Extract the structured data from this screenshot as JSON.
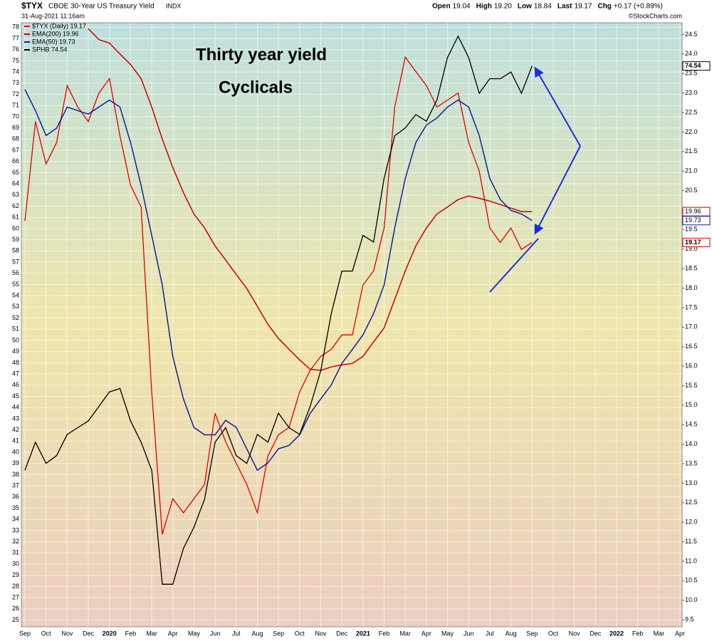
{
  "header": {
    "symbol": "$TYX",
    "name": "CBOE 30-Year US Treasury Yield",
    "exchange": "INDX",
    "datetime": "31-Aug-2021 11:16am",
    "copyright": "©StockCharts.com",
    "stats": [
      {
        "label": "Open",
        "value": "19.04"
      },
      {
        "label": "High",
        "value": "19.20"
      },
      {
        "label": "Low",
        "value": "18.84"
      },
      {
        "label": "Last",
        "value": "19.17"
      },
      {
        "label": "Chg",
        "value": "+0.17 (+0.89%)"
      }
    ]
  },
  "chart_data": {
    "type": "line",
    "annotations": [
      {
        "text": "Thirty year yield",
        "color": "#e00000"
      },
      {
        "text": "Cyclicals",
        "color": "#000000"
      }
    ],
    "categories": [
      "Sep",
      null,
      "Oct",
      null,
      "Nov",
      null,
      "Dec",
      null,
      "2020",
      null,
      "Feb",
      null,
      "Mar",
      null,
      "Apr",
      null,
      "May",
      null,
      "Jun",
      null,
      "Jul",
      null,
      "Aug",
      null,
      "Sep",
      null,
      "Oct",
      null,
      "Nov",
      null,
      "Dec",
      null,
      "2021",
      null,
      "Feb",
      null,
      "Mar",
      null,
      "Apr",
      null,
      "May",
      null,
      "Jun",
      null,
      "Jul",
      null,
      "Aug",
      null,
      "Sep",
      null,
      "Oct",
      null,
      "Nov",
      null,
      "Dec",
      null,
      "2022",
      null,
      "Feb",
      null,
      "Mar",
      null,
      "Apr"
    ],
    "series": [
      {
        "name": "$TYX (Daily) 19.17",
        "color": "#e00000",
        "axis": "y2",
        "width": 1.3,
        "values": [
          19.72,
          22.27,
          21.18,
          21.73,
          23.19,
          22.64,
          22.27,
          23.0,
          23.37,
          21.9,
          20.63,
          20.08,
          15.34,
          11.69,
          12.6,
          12.24,
          12.6,
          12.97,
          14.79,
          14.06,
          13.51,
          12.97,
          12.24,
          13.7,
          14.24,
          14.43,
          15.34,
          15.89,
          16.25,
          16.43,
          16.8,
          16.8,
          18.08,
          18.44,
          19.54,
          22.64,
          23.92,
          23.55,
          23.19,
          22.64,
          22.82,
          23.0,
          21.73,
          21.0,
          19.54,
          19.17,
          19.54,
          18.99,
          19.17,
          null,
          null,
          null,
          null,
          null,
          null,
          null,
          null,
          null,
          null,
          null,
          null,
          null,
          null
        ]
      },
      {
        "name": "EMA(200) 19.96",
        "color": "#cc0000",
        "axis": "y2",
        "width": 1.5,
        "values": [
          null,
          null,
          null,
          null,
          null,
          null,
          24.65,
          24.37,
          24.28,
          24.0,
          23.73,
          23.37,
          22.64,
          21.82,
          21.09,
          20.45,
          19.9,
          19.54,
          19.08,
          18.72,
          18.35,
          17.99,
          17.53,
          17.07,
          16.71,
          16.43,
          16.16,
          15.92,
          15.89,
          15.98,
          16.03,
          16.07,
          16.25,
          16.62,
          16.98,
          17.71,
          18.44,
          19.08,
          19.54,
          19.9,
          20.08,
          20.27,
          20.36,
          20.3,
          20.23,
          20.14,
          20.05,
          19.96,
          19.96,
          null,
          null,
          null,
          null,
          null,
          null,
          null,
          null,
          null,
          null,
          null,
          null,
          null,
          null
        ]
      },
      {
        "name": "EMA(50) 19.73",
        "color": "#1020a0",
        "axis": "y2",
        "width": 1.5,
        "values": [
          23.09,
          22.55,
          21.91,
          22.1,
          22.64,
          22.55,
          22.46,
          22.64,
          22.82,
          22.64,
          21.73,
          20.63,
          19.35,
          18.08,
          16.25,
          15.16,
          14.43,
          14.24,
          14.24,
          14.61,
          14.43,
          13.88,
          13.33,
          13.52,
          13.88,
          13.97,
          14.24,
          14.79,
          15.16,
          15.52,
          16.07,
          16.43,
          16.8,
          17.35,
          18.08,
          19.54,
          20.81,
          21.73,
          22.18,
          22.36,
          22.64,
          22.82,
          22.64,
          21.91,
          20.81,
          20.27,
          19.99,
          19.9,
          19.73,
          null,
          null,
          null,
          null,
          null,
          null,
          null,
          null,
          null,
          null,
          null,
          null,
          null,
          null
        ]
      },
      {
        "name": "SPHB 74.54",
        "color": "#000000",
        "axis": "y",
        "width": 1.3,
        "values": [
          38.4,
          40.9,
          39.0,
          39.7,
          41.6,
          42.2,
          42.8,
          44.1,
          45.4,
          45.7,
          42.8,
          40.9,
          38.4,
          28.2,
          28.2,
          31.4,
          33.3,
          35.8,
          40.9,
          42.2,
          39.7,
          39.0,
          41.6,
          40.9,
          43.5,
          42.2,
          41.6,
          44.1,
          47.3,
          52.4,
          56.2,
          56.2,
          59.4,
          58.8,
          64.5,
          68.3,
          69.0,
          70.2,
          69.6,
          71.5,
          75.3,
          77.2,
          75.3,
          72.1,
          73.4,
          73.4,
          74.0,
          72.1,
          74.54,
          null,
          null,
          null,
          null,
          null,
          null,
          null,
          null,
          null,
          null,
          null,
          null,
          null,
          null
        ]
      }
    ],
    "ylim": [
      24.4,
      78.4
    ],
    "yticks": [
      25,
      26,
      27,
      28,
      29,
      30,
      31,
      32,
      33,
      34,
      35,
      36,
      37,
      38,
      39,
      40,
      41,
      42,
      43,
      44,
      45,
      46,
      47,
      48,
      49,
      50,
      51,
      52,
      53,
      54,
      55,
      56,
      57,
      58,
      59,
      60,
      61,
      62,
      63,
      64,
      65,
      66,
      67,
      68,
      69,
      70,
      71,
      72,
      73,
      74,
      75,
      76,
      77,
      78
    ],
    "y2lim": [
      9.32,
      24.8
    ],
    "y2ticks": [
      9.5,
      {
        "value": 10,
        "label": "10.0"
      },
      10.5,
      {
        "value": 11,
        "label": "11.0"
      },
      11.5,
      {
        "value": 12,
        "label": "12.0"
      },
      12.5,
      {
        "value": 13,
        "label": "13.0"
      },
      13.5,
      {
        "value": 14,
        "label": "14.0"
      },
      14.5,
      {
        "value": 15,
        "label": "15.0"
      },
      15.5,
      {
        "value": 16,
        "label": "16.0"
      },
      16.5,
      {
        "value": 17,
        "label": "17.0"
      },
      17.5,
      {
        "value": 18,
        "label": "18.0"
      },
      18.5,
      {
        "value": 19,
        "label": "19.0"
      },
      19.5,
      {
        "value": 20,
        "label": "20.0"
      },
      20.5,
      {
        "value": 21,
        "label": "21.0"
      },
      21.5,
      {
        "value": 22,
        "label": "22.0"
      },
      22.5,
      {
        "value": 23,
        "label": "23.0"
      },
      23.5,
      {
        "value": 24,
        "label": "24.0"
      },
      24.5
    ],
    "grid": true
  }
}
